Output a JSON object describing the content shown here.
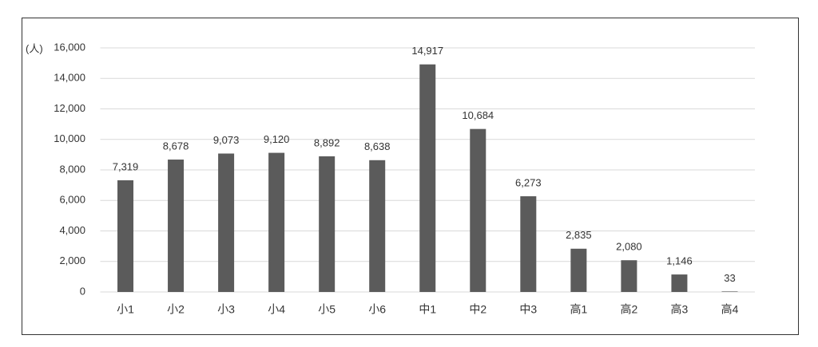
{
  "chart_data": {
    "type": "bar",
    "ylabel": "(人)",
    "categories": [
      "小1",
      "小2",
      "小3",
      "小4",
      "小5",
      "小6",
      "中1",
      "中2",
      "中3",
      "高1",
      "高2",
      "高3",
      "高4"
    ],
    "values": [
      7319,
      8678,
      9073,
      9120,
      8892,
      8638,
      14917,
      10684,
      6273,
      2835,
      2080,
      1146,
      33
    ],
    "value_labels": [
      "7,319",
      "8,678",
      "9,073",
      "9,120",
      "8,892",
      "8,638",
      "14,917",
      "10,684",
      "6,273",
      "2,835",
      "2,080",
      "1,146",
      "33"
    ],
    "color": "#5b5b5b",
    "ylim": [
      0,
      16000
    ],
    "yticks": [
      0,
      {
        "value": 2000,
        "label": "2,000"
      },
      {
        "value": 4000,
        "label": "4,000"
      },
      {
        "value": 6000,
        "label": "6,000"
      },
      {
        "value": 8000,
        "label": "8,000"
      },
      {
        "value": 10000,
        "label": "10,000"
      },
      {
        "value": 12000,
        "label": "12,000"
      },
      {
        "value": 14000,
        "label": "14,000"
      },
      {
        "value": 16000,
        "label": "16,000"
      }
    ],
    "grid": true
  }
}
